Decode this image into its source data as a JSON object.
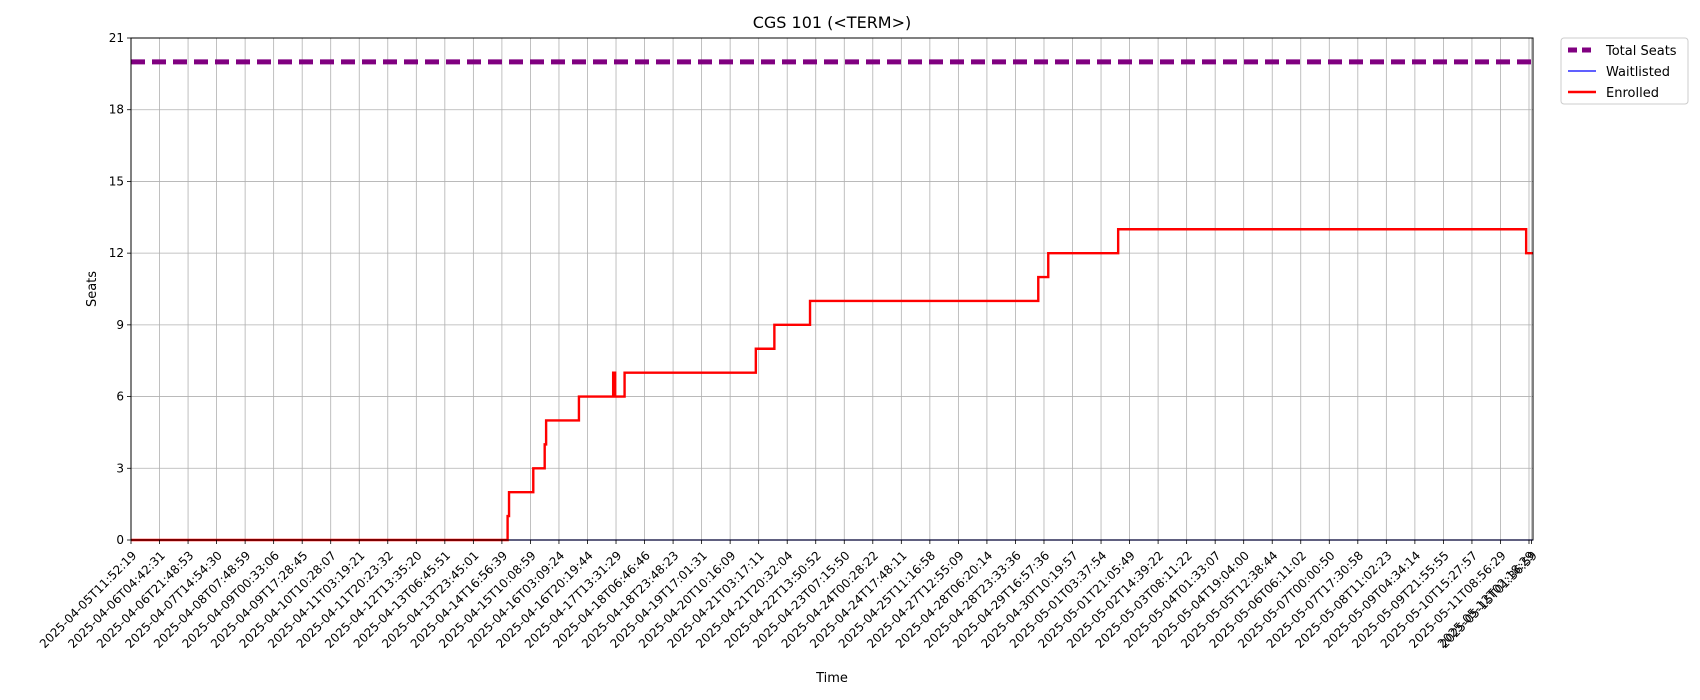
{
  "chart_data": {
    "type": "line",
    "title": "CGS 101 (<TERM>)",
    "xlabel": "Time",
    "ylabel": "Seats",
    "ylim": [
      0,
      21
    ],
    "yticks": [
      0,
      3,
      6,
      9,
      12,
      15,
      18,
      21
    ],
    "grid": true,
    "legend_placement": "outside-top-right",
    "x_tick_labels": [
      "2025-04-05T11:52:19",
      "2025-04-06T04:42:31",
      "2025-04-06T21:48:53",
      "2025-04-07T14:54:30",
      "2025-04-08T07:48:59",
      "2025-04-09T00:33:06",
      "2025-04-09T17:28:45",
      "2025-04-10T10:28:07",
      "2025-04-11T03:19:21",
      "2025-04-11T20:23:32",
      "2025-04-12T13:35:20",
      "2025-04-13T06:45:51",
      "2025-04-13T23:45:01",
      "2025-04-14T16:56:39",
      "2025-04-15T10:08:59",
      "2025-04-16T03:09:24",
      "2025-04-16T20:19:44",
      "2025-04-17T13:31:29",
      "2025-04-18T06:46:46",
      "2025-04-18T23:48:23",
      "2025-04-19T17:01:31",
      "2025-04-20T10:16:09",
      "2025-04-21T03:17:11",
      "2025-04-21T20:32:04",
      "2025-04-22T13:50:52",
      "2025-04-23T07:15:50",
      "2025-04-24T00:28:22",
      "2025-04-24T17:48:11",
      "2025-04-25T11:16:58",
      "2025-04-27T12:55:09",
      "2025-04-28T06:20:14",
      "2025-04-28T23:33:36",
      "2025-04-29T16:57:36",
      "2025-04-30T10:19:57",
      "2025-05-01T03:37:54",
      "2025-05-01T21:05:49",
      "2025-05-02T14:39:22",
      "2025-05-03T08:11:22",
      "2025-05-04T01:33:07",
      "2025-05-04T19:04:00",
      "2025-05-05T12:38:44",
      "2025-05-06T06:11:02",
      "2025-05-07T00:00:50",
      "2025-05-07T17:30:58",
      "2025-05-08T11:02:23",
      "2025-05-09T04:34:14",
      "2025-05-09T21:55:55",
      "2025-05-10T15:27:57",
      "2025-05-11T08:56:29",
      "2025-05-12T02:18:29",
      "2025-05-15T01:36:59"
    ],
    "series": [
      {
        "name": "Total Seats",
        "color": "#800080",
        "style": "dashed",
        "points": [
          [
            0,
            20
          ],
          [
            50.05,
            20
          ]
        ]
      },
      {
        "name": "Waitlisted",
        "color": "#0000ff",
        "style": "solid",
        "points": [
          [
            0,
            0
          ],
          [
            50.05,
            0
          ]
        ]
      },
      {
        "name": "Enrolled",
        "color": "#ff0000",
        "style": "steps",
        "points": [
          [
            0,
            0
          ],
          [
            13.2,
            0
          ],
          [
            13.2,
            1
          ],
          [
            13.25,
            1
          ],
          [
            13.25,
            2
          ],
          [
            14.1,
            2
          ],
          [
            14.1,
            3
          ],
          [
            14.5,
            3
          ],
          [
            14.5,
            4
          ],
          [
            14.55,
            4
          ],
          [
            14.55,
            5
          ],
          [
            15.7,
            5
          ],
          [
            15.7,
            6
          ],
          [
            16.9,
            6
          ],
          [
            16.9,
            7
          ],
          [
            16.97,
            7
          ],
          [
            16.97,
            6
          ],
          [
            17.3,
            6
          ],
          [
            17.3,
            7
          ],
          [
            21.9,
            7
          ],
          [
            21.9,
            8
          ],
          [
            22.55,
            8
          ],
          [
            22.55,
            9
          ],
          [
            23.8,
            9
          ],
          [
            23.8,
            10
          ],
          [
            31.8,
            10
          ],
          [
            31.8,
            11
          ],
          [
            32.15,
            11
          ],
          [
            32.15,
            12
          ],
          [
            34.6,
            12
          ],
          [
            34.6,
            13
          ],
          [
            48.9,
            13
          ],
          [
            48.9,
            12
          ],
          [
            50.05,
            12
          ]
        ]
      }
    ]
  }
}
